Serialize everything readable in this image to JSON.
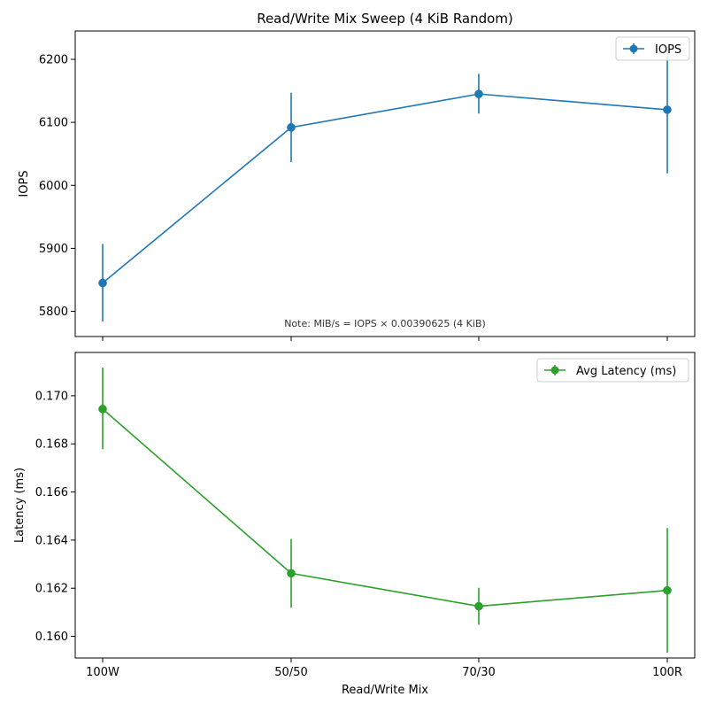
{
  "title": "Read/Write Mix Sweep (4 KiB Random)",
  "colors": {
    "iops": "#1f77b4",
    "latency": "#2ca02c"
  },
  "chart_data": [
    {
      "type": "line",
      "categories": [
        "100W",
        "50/50",
        "70/30",
        "100R"
      ],
      "series": [
        {
          "name": "IOPS",
          "values": [
            5845,
            6092,
            6145,
            6120
          ],
          "err_low": [
            5784,
            6037,
            6114,
            6019
          ],
          "err_high": [
            5907,
            6147,
            6177,
            6220
          ]
        }
      ],
      "xlabel": "",
      "ylabel": "IOPS",
      "ylim": [
        5760,
        6245
      ],
      "yticks": [
        5800,
        5900,
        6000,
        6100,
        6200
      ],
      "legend": "top-right",
      "annotation": "Note: MiB/s = IOPS × 0.00390625 (4 KiB)"
    },
    {
      "type": "line",
      "categories": [
        "100W",
        "50/50",
        "70/30",
        "100R"
      ],
      "series": [
        {
          "name": "Avg Latency (ms)",
          "values": [
            0.16945,
            0.16262,
            0.16125,
            0.16191
          ],
          "err_low": [
            0.16778,
            0.1612,
            0.16048,
            0.15932
          ],
          "err_high": [
            0.17117,
            0.16405,
            0.16202,
            0.1645
          ]
        }
      ],
      "xlabel": "Read/Write Mix",
      "ylabel": "Latency (ms)",
      "ylim": [
        0.1591,
        0.1718
      ],
      "yticks": [
        0.16,
        0.162,
        0.164,
        0.166,
        0.168,
        0.17
      ],
      "ytick_labels": [
        "0.160",
        "0.162",
        "0.164",
        "0.166",
        "0.168",
        "0.170"
      ],
      "legend": "top-right"
    }
  ]
}
